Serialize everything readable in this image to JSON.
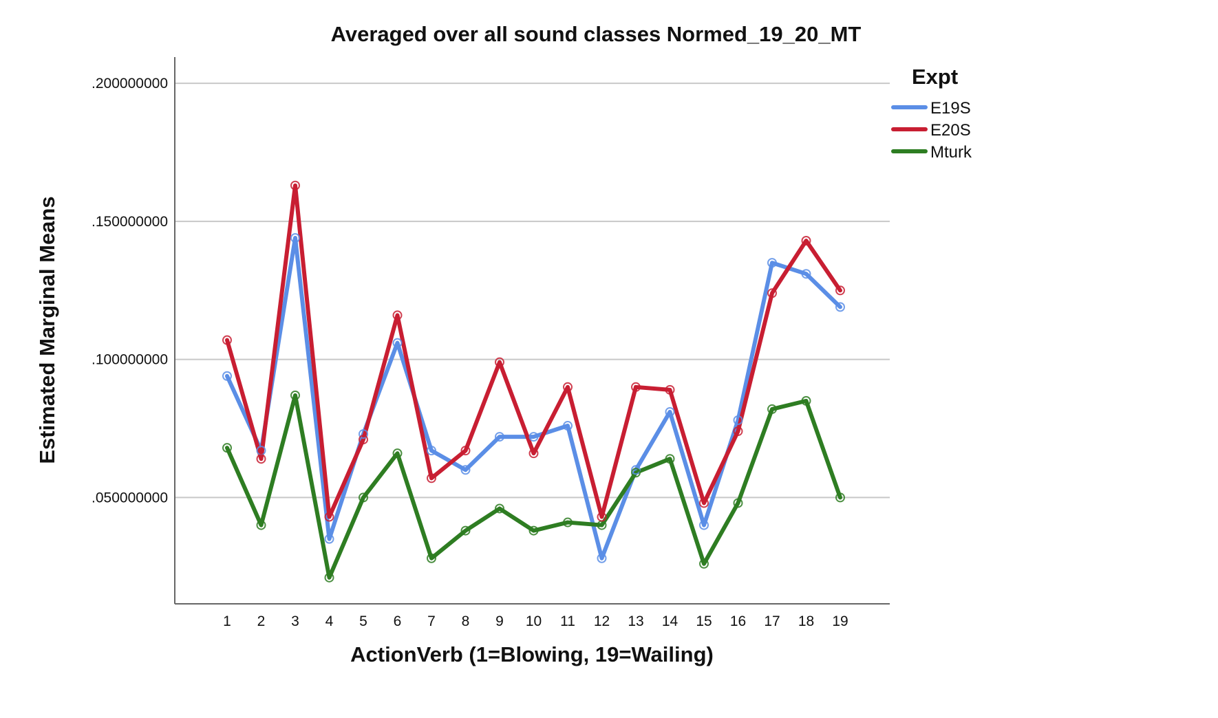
{
  "chart_data": {
    "type": "line",
    "title": "Averaged over all sound classes Normed_19_20_MT",
    "xlabel": "ActionVerb (1=Blowing, 19=Wailing)",
    "ylabel": "Estimated Marginal Means",
    "x": [
      1,
      2,
      3,
      4,
      5,
      6,
      7,
      8,
      9,
      10,
      11,
      12,
      13,
      14,
      15,
      16,
      17,
      18,
      19
    ],
    "x_tick_labels": [
      "1",
      "2",
      "3",
      "4",
      "5",
      "6",
      "7",
      "8",
      "9",
      "10",
      "11",
      "12",
      "13",
      "14",
      "15",
      "16",
      "17",
      "18",
      "19"
    ],
    "y_ticks": [
      0.05,
      0.1,
      0.15,
      0.2
    ],
    "y_tick_labels": [
      ".050000000",
      ".100000000",
      ".150000000",
      ".200000000"
    ],
    "ylim": [
      0.0115,
      0.2095
    ],
    "grid": "horizontal",
    "legend": {
      "title": "Expt",
      "placement": "right"
    },
    "series": [
      {
        "name": "E19S",
        "color": "#5b8ee6",
        "values": [
          0.094,
          0.067,
          0.144,
          0.035,
          0.073,
          0.106,
          0.067,
          0.06,
          0.072,
          0.072,
          0.076,
          0.028,
          0.06,
          0.081,
          0.04,
          0.078,
          0.135,
          0.131,
          0.119
        ]
      },
      {
        "name": "E20S",
        "color": "#c81e32",
        "values": [
          0.107,
          0.064,
          0.163,
          0.043,
          0.071,
          0.116,
          0.057,
          0.067,
          0.099,
          0.066,
          0.09,
          0.043,
          0.09,
          0.089,
          0.048,
          0.074,
          0.124,
          0.143,
          0.125
        ]
      },
      {
        "name": "Mturk",
        "color": "#2e7d22",
        "values": [
          0.068,
          0.04,
          0.087,
          0.021,
          0.05,
          0.066,
          0.028,
          0.038,
          0.046,
          0.038,
          0.041,
          0.04,
          0.059,
          0.064,
          0.026,
          0.048,
          0.082,
          0.085,
          0.05
        ]
      }
    ]
  }
}
